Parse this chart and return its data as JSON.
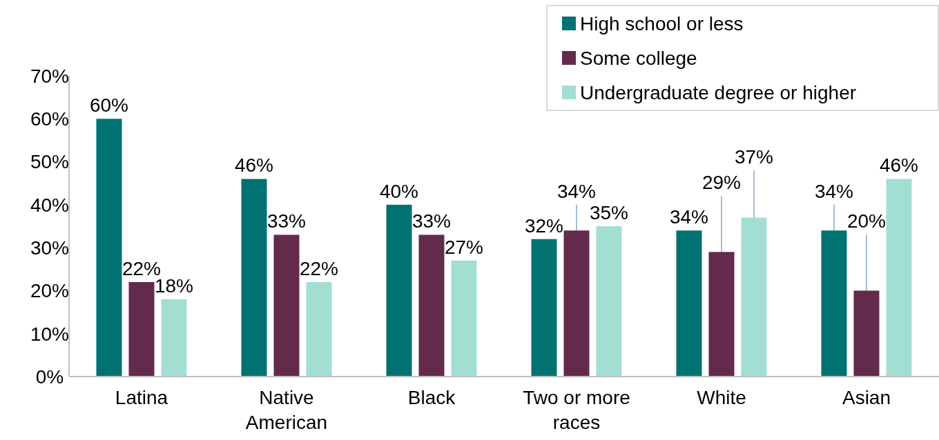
{
  "chart_data": {
    "type": "bar",
    "categories": [
      "Latina",
      "Native American",
      "Black",
      "Two or more races",
      "White",
      "Asian"
    ],
    "series": [
      {
        "name": "High school or less",
        "color": "#007272",
        "values": [
          60,
          46,
          40,
          32,
          34,
          34
        ],
        "value_labels": [
          "60%",
          "46%",
          "40%",
          "32%",
          "34%",
          "34%"
        ],
        "errors": [
          null,
          null,
          null,
          null,
          null,
          6
        ]
      },
      {
        "name": "Some college",
        "color": "#632a4c",
        "values": [
          22,
          33,
          33,
          34,
          29,
          20
        ],
        "value_labels": [
          "22%",
          "33%",
          "33%",
          "34%",
          "29%",
          "20%"
        ],
        "errors": [
          null,
          null,
          null,
          6,
          13,
          13
        ]
      },
      {
        "name": "Undergraduate degree or higher",
        "color": "#a3ded3",
        "values": [
          18,
          22,
          27,
          35,
          37,
          46
        ],
        "value_labels": [
          "18%",
          "22%",
          "27%",
          "35%",
          "37%",
          "46%"
        ],
        "errors": [
          null,
          null,
          null,
          null,
          11,
          null
        ]
      }
    ],
    "ylim": [
      0,
      70
    ],
    "yticks": [
      {
        "value": 0,
        "label": "0%"
      },
      {
        "value": 10,
        "label": "10%"
      },
      {
        "value": 20,
        "label": "20%"
      },
      {
        "value": 30,
        "label": "30%"
      },
      {
        "value": 40,
        "label": "40%"
      },
      {
        "value": 50,
        "label": "50%"
      },
      {
        "value": 60,
        "label": "60%"
      },
      {
        "value": 70,
        "label": "70%"
      }
    ],
    "grid": false,
    "legend": "top right"
  }
}
